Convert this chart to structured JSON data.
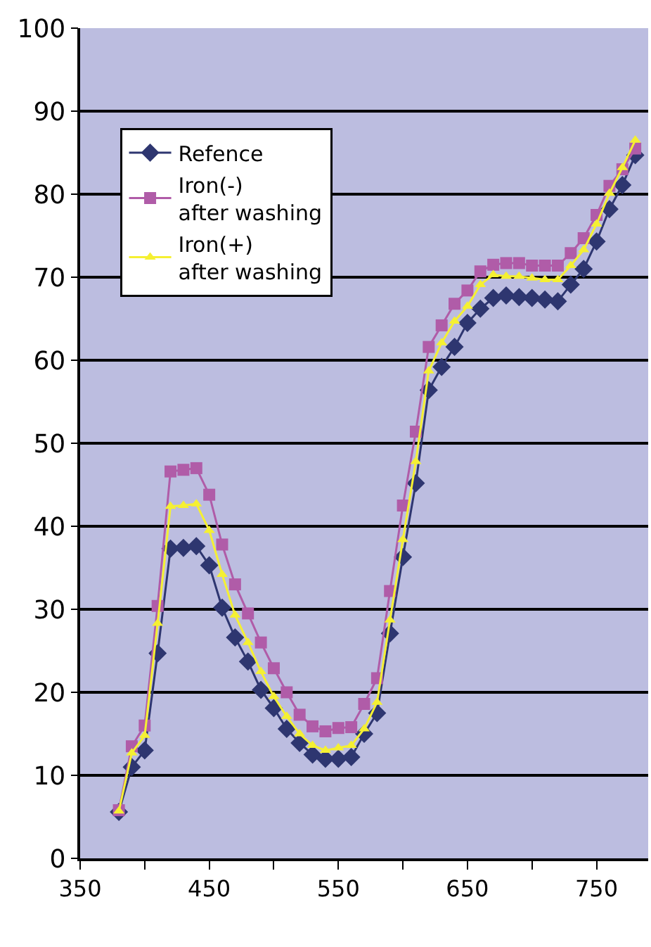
{
  "chart_data": {
    "type": "line",
    "x": [
      380,
      390,
      400,
      410,
      420,
      430,
      440,
      450,
      460,
      470,
      480,
      490,
      500,
      510,
      520,
      530,
      540,
      550,
      560,
      570,
      580,
      590,
      600,
      610,
      620,
      630,
      640,
      650,
      660,
      670,
      680,
      690,
      700,
      710,
      720,
      730,
      740,
      750,
      760,
      770,
      780
    ],
    "series": [
      {
        "name": "Refence",
        "color": "#2e3670",
        "marker": "diamond",
        "values": [
          5.6,
          11,
          13,
          24.7,
          37.3,
          37.4,
          37.6,
          35.3,
          30.2,
          26.6,
          23.7,
          20.3,
          18.1,
          15.6,
          13.9,
          12.5,
          12,
          12,
          12.2,
          15,
          17.5,
          27.1,
          36.3,
          45.2,
          56.4,
          59.2,
          61.6,
          64.5,
          66.2,
          67.5,
          67.8,
          67.6,
          67.5,
          67.3,
          67.1,
          69.1,
          71,
          74.3,
          78.2,
          81.1,
          84.7
        ]
      },
      {
        "name": "Iron(-)\nafter washing",
        "color": "#b05ca8",
        "marker": "square",
        "values": [
          5.8,
          13.5,
          16,
          30.4,
          46.6,
          46.8,
          47,
          43.8,
          37.8,
          33,
          29.5,
          26,
          22.9,
          20,
          17.3,
          15.9,
          15.3,
          15.7,
          15.8,
          18.6,
          21.7,
          32.2,
          42.5,
          51.4,
          61.6,
          64.2,
          66.8,
          68.4,
          70.7,
          71.5,
          71.7,
          71.7,
          71.4,
          71.4,
          71.4,
          72.9,
          74.7,
          77.5,
          81,
          83,
          85.5
        ]
      },
      {
        "name": "Iron(+)\nafter washing",
        "color": "#f5f032",
        "marker": "triangle",
        "values": [
          5.7,
          12.7,
          14.8,
          28.3,
          42.4,
          42.5,
          42.7,
          39.5,
          34.2,
          29.3,
          26,
          22.5,
          19.5,
          17.1,
          15,
          13.6,
          13,
          13.3,
          13.6,
          15.6,
          18.8,
          28.7,
          38.4,
          47.8,
          58.7,
          62.1,
          64.7,
          66.5,
          69.1,
          70.3,
          70.1,
          70.1,
          69.9,
          69.7,
          69.7,
          71.4,
          73.3,
          76.4,
          80.1,
          83.2,
          86.5
        ]
      }
    ],
    "xlim": [
      350,
      790
    ],
    "xticks": [
      350,
      {
        "value": 400,
        "label": null
      },
      450,
      {
        "value": 500,
        "label": null
      },
      550,
      {
        "value": 600,
        "label": null
      },
      650,
      {
        "value": 700,
        "label": null
      },
      750
    ],
    "ylim": [
      0,
      100
    ],
    "yticks": [
      0,
      10,
      20,
      30,
      40,
      50,
      60,
      70,
      80,
      90,
      100
    ],
    "grid": "y",
    "legend": "top left",
    "line_style": "solid"
  }
}
